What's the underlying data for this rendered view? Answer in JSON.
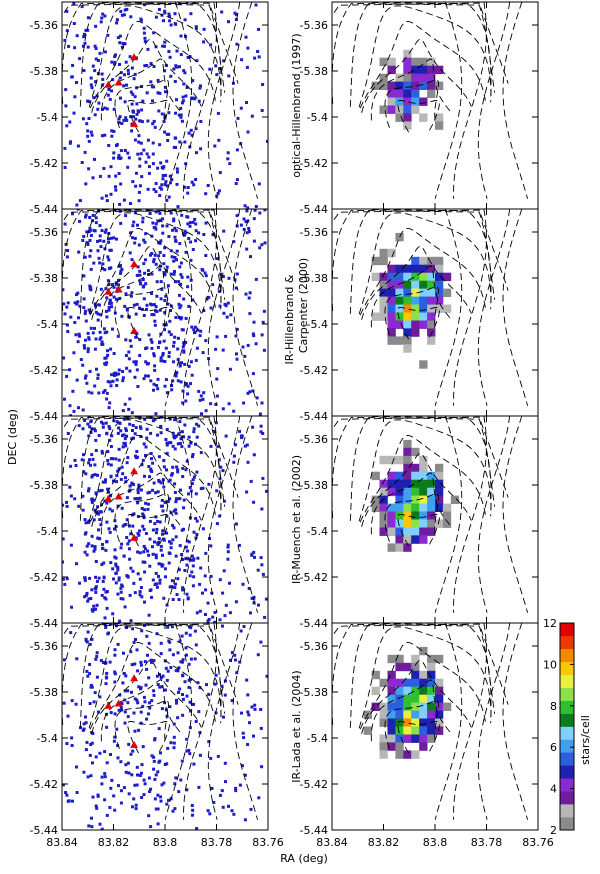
{
  "figure": {
    "xlabel": "RA (deg)",
    "ylabel": "DEC (deg)",
    "colorbar_label": "stars/cell"
  },
  "chart_data": {
    "type": "scatter",
    "layout": "4 rows x 2 columns; left column: star positions (scatter) over dashed contours, right column: stellar density map (heatmap)",
    "xlim": [
      83.84,
      83.76
    ],
    "ylim": [
      -5.44,
      -5.35
    ],
    "x_ticks": [
      "83.84",
      "83.82",
      "83.8",
      "83.78",
      "83.76"
    ],
    "y_ticks": [
      "-5.36",
      "-5.38",
      "-5.4",
      "-5.42",
      "-5.44"
    ],
    "grid": false,
    "rows": [
      {
        "catalog": "optical-Hillenbrand (1997)",
        "label_lines": [
          "optical-Hillenbrand (1997)"
        ],
        "n_points": 420,
        "seed": 11,
        "peak_density": 7
      },
      {
        "catalog": "IR-Hillenbrand & Carpenter (2000)",
        "label_lines": [
          "IR-Hillenbrand &",
          "Carpenter (2000)"
        ],
        "n_points": 620,
        "seed": 23,
        "peak_density": 12
      },
      {
        "catalog": "IR-Muench et al. (2002)",
        "label_lines": [
          "IR-Muench et al. (2002)"
        ],
        "n_points": 640,
        "seed": 37,
        "peak_density": 12
      },
      {
        "catalog": "IR-Lada et al. (2004)",
        "label_lines": [
          "IR-Lada et al. (2004)"
        ],
        "n_points": 400,
        "seed": 51,
        "peak_density": 12
      }
    ],
    "markers_red": [
      {
        "x": 83.812,
        "y": -5.374
      },
      {
        "x": 83.818,
        "y": -5.385
      },
      {
        "x": 83.822,
        "y": -5.386
      },
      {
        "x": 83.812,
        "y": -5.403
      }
    ],
    "density_colorbar": {
      "label": "stars/cell",
      "range": [
        2,
        12
      ],
      "ticks": [
        "2",
        "4",
        "6",
        "8",
        "10",
        "12"
      ],
      "colors": [
        "#8a8a8a",
        "#b7b7b7",
        "#6f1c9e",
        "#8a2ad0",
        "#1f1fb0",
        "#2b5fe0",
        "#3fa0f0",
        "#7fd0ff",
        "#0e7a1e",
        "#2fbf2f",
        "#8ee04a",
        "#e8f040",
        "#f8c800",
        "#f28a00",
        "#ea3a00",
        "#e00000"
      ]
    }
  }
}
